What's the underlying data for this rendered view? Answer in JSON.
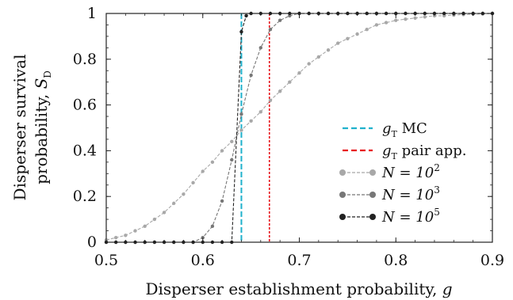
{
  "chart_data": {
    "type": "line",
    "xlabel_main": "Disperser establishment probability, ",
    "xlabel_var": "g",
    "ylabel_line1": "Disperser survival",
    "ylabel_line2_main": "probability, ",
    "ylabel_var": "S",
    "ylabel_sub": "D",
    "xlim": [
      0.5,
      0.9
    ],
    "ylim": [
      0,
      1
    ],
    "x_ticks": [
      0.5,
      0.6,
      0.7,
      0.8,
      0.9
    ],
    "x_tick_labels": [
      "0.5",
      "0.6",
      "0.7",
      "0.8",
      "0.9"
    ],
    "y_ticks": [
      0,
      0.2,
      0.4,
      0.6,
      0.8,
      1
    ],
    "y_tick_labels": [
      "0",
      "0.2",
      "0.4",
      "0.6",
      "0.8",
      "1"
    ],
    "vlines": [
      {
        "label_var": "g",
        "label_sub": "T",
        "label_text": " MC",
        "x": 0.64,
        "color": "#1fb1cc"
      },
      {
        "label_var": "g",
        "label_sub": "T",
        "label_text": " pair app.",
        "x": 0.669,
        "color": "#e8141c"
      }
    ],
    "series": [
      {
        "name": "N = 10^2",
        "label_main": "N = 10",
        "label_sup": "2",
        "color": "#a8a8a8",
        "x": [
          0.5,
          0.51,
          0.52,
          0.53,
          0.54,
          0.55,
          0.56,
          0.57,
          0.58,
          0.59,
          0.6,
          0.61,
          0.62,
          0.63,
          0.64,
          0.65,
          0.66,
          0.67,
          0.68,
          0.69,
          0.7,
          0.71,
          0.72,
          0.73,
          0.74,
          0.75,
          0.76,
          0.77,
          0.78,
          0.79,
          0.8,
          0.81,
          0.82,
          0.83,
          0.84,
          0.85,
          0.86,
          0.87,
          0.88,
          0.89,
          0.9
        ],
        "y": [
          0.01,
          0.02,
          0.03,
          0.05,
          0.07,
          0.1,
          0.13,
          0.17,
          0.21,
          0.26,
          0.31,
          0.35,
          0.4,
          0.44,
          0.49,
          0.53,
          0.57,
          0.62,
          0.66,
          0.7,
          0.74,
          0.78,
          0.81,
          0.84,
          0.87,
          0.89,
          0.91,
          0.93,
          0.95,
          0.96,
          0.97,
          0.975,
          0.98,
          0.985,
          0.99,
          0.99,
          0.993,
          0.995,
          0.997,
          0.998,
          1.0
        ]
      },
      {
        "name": "N = 10^3",
        "label_main": "N = 10",
        "label_sup": "3",
        "color": "#777777",
        "x": [
          0.5,
          0.51,
          0.52,
          0.53,
          0.54,
          0.55,
          0.56,
          0.57,
          0.58,
          0.59,
          0.6,
          0.61,
          0.62,
          0.63,
          0.64,
          0.65,
          0.66,
          0.67,
          0.68,
          0.69,
          0.7,
          0.71,
          0.72,
          0.73,
          0.74,
          0.75,
          0.76,
          0.77,
          0.78,
          0.79,
          0.8,
          0.81,
          0.82,
          0.83,
          0.84,
          0.85,
          0.86,
          0.87,
          0.88,
          0.89,
          0.9
        ],
        "y": [
          0,
          0,
          0,
          0,
          0,
          0,
          0,
          0,
          0,
          0,
          0.02,
          0.07,
          0.18,
          0.36,
          0.56,
          0.73,
          0.85,
          0.93,
          0.97,
          0.99,
          1,
          1,
          1,
          1,
          1,
          1,
          1,
          1,
          1,
          1,
          1,
          1,
          1,
          1,
          1,
          1,
          1,
          1,
          1,
          1,
          1
        ]
      },
      {
        "name": "N = 10^5",
        "label_main": "N = 10",
        "label_sup": "5",
        "color": "#222222",
        "x": [
          0.5,
          0.51,
          0.52,
          0.53,
          0.54,
          0.55,
          0.56,
          0.57,
          0.58,
          0.59,
          0.6,
          0.61,
          0.62,
          0.63,
          0.64,
          0.645,
          0.65,
          0.66,
          0.67,
          0.68,
          0.69,
          0.7,
          0.71,
          0.72,
          0.73,
          0.74,
          0.75,
          0.76,
          0.77,
          0.78,
          0.79,
          0.8,
          0.81,
          0.82,
          0.83,
          0.84,
          0.85,
          0.86,
          0.87,
          0.88,
          0.89,
          0.9
        ],
        "y": [
          0,
          0,
          0,
          0,
          0,
          0,
          0,
          0,
          0,
          0,
          0,
          0,
          0,
          0,
          0.92,
          0.99,
          1,
          1,
          1,
          1,
          1,
          1,
          1,
          1,
          1,
          1,
          1,
          1,
          1,
          1,
          1,
          1,
          1,
          1,
          1,
          1,
          1,
          1,
          1,
          1,
          1,
          1
        ]
      }
    ],
    "grid": false,
    "legend_position": "right"
  }
}
